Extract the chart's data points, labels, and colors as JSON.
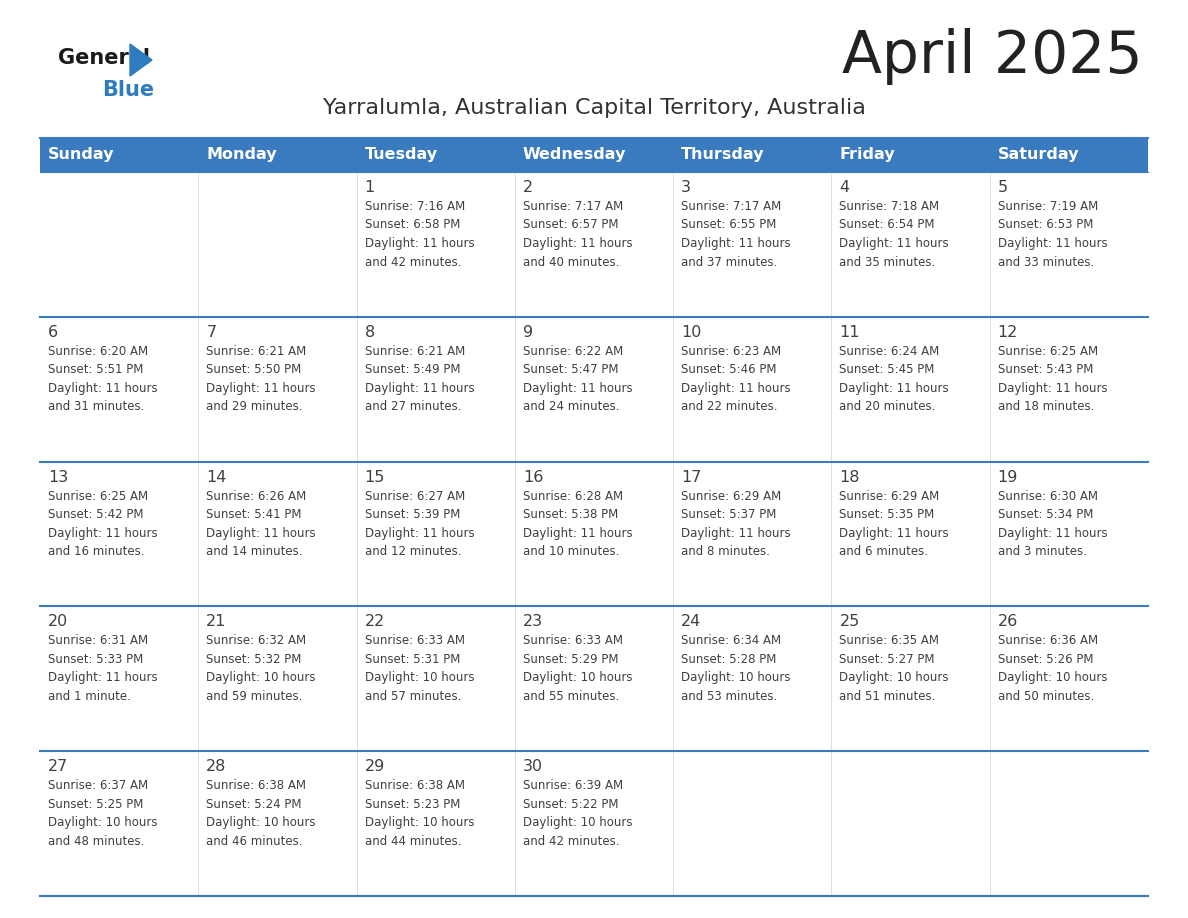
{
  "title": "April 2025",
  "subtitle": "Yarralumla, Australian Capital Territory, Australia",
  "days_of_week": [
    "Sunday",
    "Monday",
    "Tuesday",
    "Wednesday",
    "Thursday",
    "Friday",
    "Saturday"
  ],
  "header_bg_color": "#3a7bbf",
  "header_text_color": "#ffffff",
  "cell_text_color": "#404040",
  "separator_color": "#3a7bbf",
  "title_color": "#222222",
  "subtitle_color": "#333333",
  "logo_general_color": "#1a1a1a",
  "logo_blue_color": "#2e7bbf",
  "weeks": [
    [
      {
        "day": null,
        "info": null
      },
      {
        "day": null,
        "info": null
      },
      {
        "day": 1,
        "info": "Sunrise: 7:16 AM\nSunset: 6:58 PM\nDaylight: 11 hours\nand 42 minutes."
      },
      {
        "day": 2,
        "info": "Sunrise: 7:17 AM\nSunset: 6:57 PM\nDaylight: 11 hours\nand 40 minutes."
      },
      {
        "day": 3,
        "info": "Sunrise: 7:17 AM\nSunset: 6:55 PM\nDaylight: 11 hours\nand 37 minutes."
      },
      {
        "day": 4,
        "info": "Sunrise: 7:18 AM\nSunset: 6:54 PM\nDaylight: 11 hours\nand 35 minutes."
      },
      {
        "day": 5,
        "info": "Sunrise: 7:19 AM\nSunset: 6:53 PM\nDaylight: 11 hours\nand 33 minutes."
      }
    ],
    [
      {
        "day": 6,
        "info": "Sunrise: 6:20 AM\nSunset: 5:51 PM\nDaylight: 11 hours\nand 31 minutes."
      },
      {
        "day": 7,
        "info": "Sunrise: 6:21 AM\nSunset: 5:50 PM\nDaylight: 11 hours\nand 29 minutes."
      },
      {
        "day": 8,
        "info": "Sunrise: 6:21 AM\nSunset: 5:49 PM\nDaylight: 11 hours\nand 27 minutes."
      },
      {
        "day": 9,
        "info": "Sunrise: 6:22 AM\nSunset: 5:47 PM\nDaylight: 11 hours\nand 24 minutes."
      },
      {
        "day": 10,
        "info": "Sunrise: 6:23 AM\nSunset: 5:46 PM\nDaylight: 11 hours\nand 22 minutes."
      },
      {
        "day": 11,
        "info": "Sunrise: 6:24 AM\nSunset: 5:45 PM\nDaylight: 11 hours\nand 20 minutes."
      },
      {
        "day": 12,
        "info": "Sunrise: 6:25 AM\nSunset: 5:43 PM\nDaylight: 11 hours\nand 18 minutes."
      }
    ],
    [
      {
        "day": 13,
        "info": "Sunrise: 6:25 AM\nSunset: 5:42 PM\nDaylight: 11 hours\nand 16 minutes."
      },
      {
        "day": 14,
        "info": "Sunrise: 6:26 AM\nSunset: 5:41 PM\nDaylight: 11 hours\nand 14 minutes."
      },
      {
        "day": 15,
        "info": "Sunrise: 6:27 AM\nSunset: 5:39 PM\nDaylight: 11 hours\nand 12 minutes."
      },
      {
        "day": 16,
        "info": "Sunrise: 6:28 AM\nSunset: 5:38 PM\nDaylight: 11 hours\nand 10 minutes."
      },
      {
        "day": 17,
        "info": "Sunrise: 6:29 AM\nSunset: 5:37 PM\nDaylight: 11 hours\nand 8 minutes."
      },
      {
        "day": 18,
        "info": "Sunrise: 6:29 AM\nSunset: 5:35 PM\nDaylight: 11 hours\nand 6 minutes."
      },
      {
        "day": 19,
        "info": "Sunrise: 6:30 AM\nSunset: 5:34 PM\nDaylight: 11 hours\nand 3 minutes."
      }
    ],
    [
      {
        "day": 20,
        "info": "Sunrise: 6:31 AM\nSunset: 5:33 PM\nDaylight: 11 hours\nand 1 minute."
      },
      {
        "day": 21,
        "info": "Sunrise: 6:32 AM\nSunset: 5:32 PM\nDaylight: 10 hours\nand 59 minutes."
      },
      {
        "day": 22,
        "info": "Sunrise: 6:33 AM\nSunset: 5:31 PM\nDaylight: 10 hours\nand 57 minutes."
      },
      {
        "day": 23,
        "info": "Sunrise: 6:33 AM\nSunset: 5:29 PM\nDaylight: 10 hours\nand 55 minutes."
      },
      {
        "day": 24,
        "info": "Sunrise: 6:34 AM\nSunset: 5:28 PM\nDaylight: 10 hours\nand 53 minutes."
      },
      {
        "day": 25,
        "info": "Sunrise: 6:35 AM\nSunset: 5:27 PM\nDaylight: 10 hours\nand 51 minutes."
      },
      {
        "day": 26,
        "info": "Sunrise: 6:36 AM\nSunset: 5:26 PM\nDaylight: 10 hours\nand 50 minutes."
      }
    ],
    [
      {
        "day": 27,
        "info": "Sunrise: 6:37 AM\nSunset: 5:25 PM\nDaylight: 10 hours\nand 48 minutes."
      },
      {
        "day": 28,
        "info": "Sunrise: 6:38 AM\nSunset: 5:24 PM\nDaylight: 10 hours\nand 46 minutes."
      },
      {
        "day": 29,
        "info": "Sunrise: 6:38 AM\nSunset: 5:23 PM\nDaylight: 10 hours\nand 44 minutes."
      },
      {
        "day": 30,
        "info": "Sunrise: 6:39 AM\nSunset: 5:22 PM\nDaylight: 10 hours\nand 42 minutes."
      },
      {
        "day": null,
        "info": null
      },
      {
        "day": null,
        "info": null
      },
      {
        "day": null,
        "info": null
      }
    ]
  ]
}
